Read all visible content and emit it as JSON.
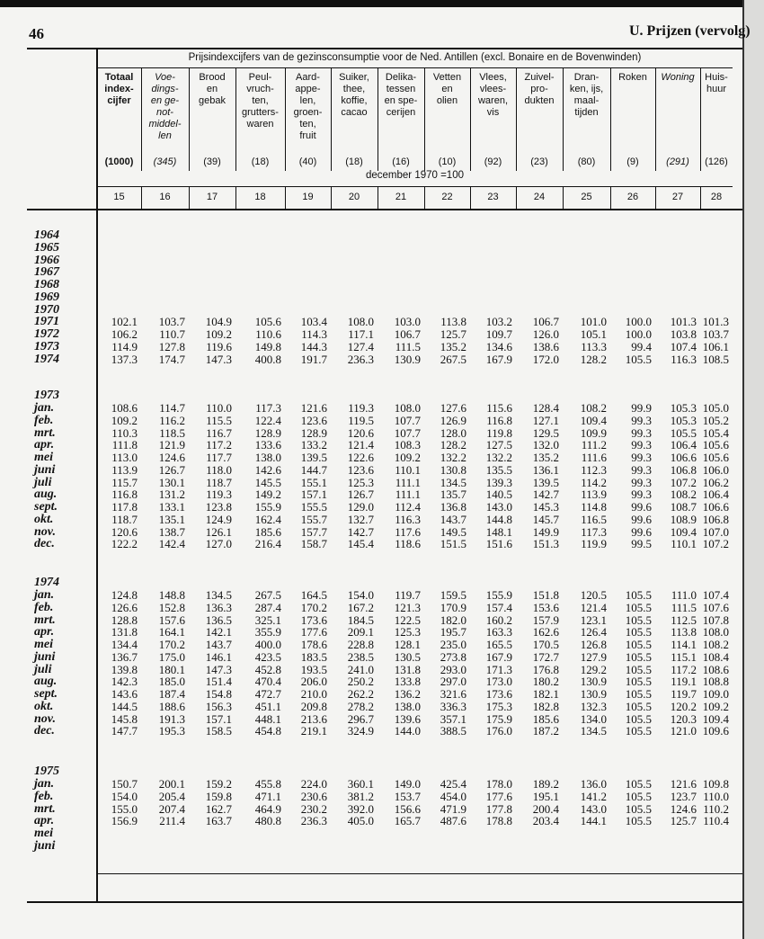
{
  "header": {
    "page_number": "46",
    "section_title": "U. Prijzen (vervolg)"
  },
  "table": {
    "title": "Prijsindexcijfers van de gezinsconsumptie voor de Ned. Antillen (excl. Bonaire en de Bovenwinden)",
    "base_note": "december 1970 =100",
    "columns": [
      {
        "label": "Totaal\nindex-\ncijfer",
        "weight": "(1000)",
        "number": 15
      },
      {
        "label": "Voe-\ndings-\nen ge-\nnot-\nmiddel-\nlen",
        "weight": "(345)",
        "number": 16
      },
      {
        "label": "Brood\nen\ngebak",
        "weight": "(39)",
        "number": 17
      },
      {
        "label": "Peul-\nvruch-\nten,\ngrutters-\nwaren",
        "weight": "(18)",
        "number": 18
      },
      {
        "label": "Aard-\nappe-\nlen,\ngroen-\nten,\nfruit",
        "weight": "(40)",
        "number": 19
      },
      {
        "label": "Suiker,\nthee,\nkoffie,\ncacao",
        "weight": "(18)",
        "number": 20
      },
      {
        "label": "Delika-\ntessen\nen spe-\ncerijen",
        "weight": "(16)",
        "number": 21
      },
      {
        "label": "Vetten\nen\nolien",
        "weight": "(10)",
        "number": 22
      },
      {
        "label": "Vlees,\nvlees-\nwaren,\nvis",
        "weight": "(92)",
        "number": 23
      },
      {
        "label": "Zuivel-\npro-\ndukten",
        "weight": "(23)",
        "number": 24
      },
      {
        "label": "Dran-\nken, ijs,\nmaal-\ntijden",
        "weight": "(80)",
        "number": 25
      },
      {
        "label": "Roken",
        "weight": "(9)",
        "number": 26
      },
      {
        "label": "Woning",
        "weight": "(291)",
        "number": 27
      },
      {
        "label": "Huis-\nhuur",
        "weight": "(126)",
        "number": 28
      }
    ],
    "sections": [
      {
        "rows": [
          {
            "label": "1964"
          },
          {
            "label": "1965"
          },
          {
            "label": "1966"
          },
          {
            "label": "1967"
          },
          {
            "label": "1968"
          },
          {
            "label": "1969"
          },
          {
            "label": "1970"
          },
          {
            "label": "1971",
            "values": [
              "102.1",
              "103.7",
              "104.9",
              "105.6",
              "103.4",
              "108.0",
              "103.0",
              "113.8",
              "103.2",
              "106.7",
              "101.0",
              "100.0",
              "101.3",
              "101.3"
            ]
          },
          {
            "label": "1972",
            "values": [
              "106.2",
              "110.7",
              "109.2",
              "110.6",
              "114.3",
              "117.1",
              "106.7",
              "125.7",
              "109.7",
              "126.0",
              "105.1",
              "100.0",
              "103.8",
              "103.7"
            ]
          },
          {
            "label": "1973",
            "values": [
              "114.9",
              "127.8",
              "119.6",
              "149.8",
              "144.3",
              "127.4",
              "111.5",
              "135.2",
              "134.6",
              "138.6",
              "113.3",
              "99.4",
              "107.4",
              "106.1"
            ]
          },
          {
            "label": "1974",
            "values": [
              "137.3",
              "174.7",
              "147.3",
              "400.8",
              "191.7",
              "236.3",
              "130.9",
              "267.5",
              "167.9",
              "172.0",
              "128.2",
              "105.5",
              "116.3",
              "108.5"
            ]
          }
        ]
      },
      {
        "label": "1973",
        "rows": [
          {
            "label": "jan.",
            "values": [
              "108.6",
              "114.7",
              "110.0",
              "117.3",
              "121.6",
              "119.3",
              "108.0",
              "127.6",
              "115.6",
              "128.4",
              "108.2",
              "99.9",
              "105.3",
              "105.0"
            ]
          },
          {
            "label": "feb.",
            "values": [
              "109.2",
              "116.2",
              "115.5",
              "122.4",
              "123.6",
              "119.5",
              "107.7",
              "126.9",
              "116.8",
              "127.1",
              "109.4",
              "99.3",
              "105.3",
              "105.2"
            ]
          },
          {
            "label": "mrt.",
            "values": [
              "110.3",
              "118.5",
              "116.7",
              "128.9",
              "128.9",
              "120.6",
              "107.7",
              "128.0",
              "119.8",
              "129.5",
              "109.9",
              "99.3",
              "105.5",
              "105.4"
            ]
          },
          {
            "label": "apr.",
            "values": [
              "111.8",
              "121.9",
              "117.2",
              "133.6",
              "133.2",
              "121.4",
              "108.3",
              "128.2",
              "127.5",
              "132.0",
              "111.2",
              "99.3",
              "106.4",
              "105.6"
            ]
          },
          {
            "label": "mei",
            "values": [
              "113.0",
              "124.6",
              "117.7",
              "138.0",
              "139.5",
              "122.6",
              "109.2",
              "132.2",
              "132.2",
              "135.2",
              "111.6",
              "99.3",
              "106.6",
              "105.6"
            ]
          },
          {
            "label": "juni",
            "values": [
              "113.9",
              "126.7",
              "118.0",
              "142.6",
              "144.7",
              "123.6",
              "110.1",
              "130.8",
              "135.5",
              "136.1",
              "112.3",
              "99.3",
              "106.8",
              "106.0"
            ]
          },
          {
            "label": "juli",
            "values": [
              "115.7",
              "130.1",
              "118.7",
              "145.5",
              "155.1",
              "125.3",
              "111.1",
              "134.5",
              "139.3",
              "139.5",
              "114.2",
              "99.3",
              "107.2",
              "106.2"
            ]
          },
          {
            "label": "aug.",
            "values": [
              "116.8",
              "131.2",
              "119.3",
              "149.2",
              "157.1",
              "126.7",
              "111.1",
              "135.7",
              "140.5",
              "142.7",
              "113.9",
              "99.3",
              "108.2",
              "106.4"
            ]
          },
          {
            "label": "sept.",
            "values": [
              "117.8",
              "133.1",
              "123.8",
              "155.9",
              "155.5",
              "129.0",
              "112.4",
              "136.8",
              "143.0",
              "145.3",
              "114.8",
              "99.6",
              "108.7",
              "106.6"
            ]
          },
          {
            "label": "okt.",
            "values": [
              "118.7",
              "135.1",
              "124.9",
              "162.4",
              "155.7",
              "132.7",
              "116.3",
              "143.7",
              "144.8",
              "145.7",
              "116.5",
              "99.6",
              "108.9",
              "106.8"
            ]
          },
          {
            "label": "nov.",
            "values": [
              "120.6",
              "138.7",
              "126.1",
              "185.6",
              "157.7",
              "142.7",
              "117.6",
              "149.5",
              "148.1",
              "149.9",
              "117.3",
              "99.6",
              "109.4",
              "107.0"
            ]
          },
          {
            "label": "dec.",
            "values": [
              "122.2",
              "142.4",
              "127.0",
              "216.4",
              "158.7",
              "145.4",
              "118.6",
              "151.5",
              "151.6",
              "151.3",
              "119.9",
              "99.5",
              "110.1",
              "107.2"
            ]
          }
        ]
      },
      {
        "label": "1974",
        "rows": [
          {
            "label": "jan.",
            "values": [
              "124.8",
              "148.8",
              "134.5",
              "267.5",
              "164.5",
              "154.0",
              "119.7",
              "159.5",
              "155.9",
              "151.8",
              "120.5",
              "105.5",
              "111.0",
              "107.4"
            ]
          },
          {
            "label": "feb.",
            "values": [
              "126.6",
              "152.8",
              "136.3",
              "287.4",
              "170.2",
              "167.2",
              "121.3",
              "170.9",
              "157.4",
              "153.6",
              "121.4",
              "105.5",
              "111.5",
              "107.6"
            ]
          },
          {
            "label": "mrt.",
            "values": [
              "128.8",
              "157.6",
              "136.5",
              "325.1",
              "173.6",
              "184.5",
              "122.5",
              "182.0",
              "160.2",
              "157.9",
              "123.1",
              "105.5",
              "112.5",
              "107.8"
            ]
          },
          {
            "label": "apr.",
            "values": [
              "131.8",
              "164.1",
              "142.1",
              "355.9",
              "177.6",
              "209.1",
              "125.3",
              "195.7",
              "163.3",
              "162.6",
              "126.4",
              "105.5",
              "113.8",
              "108.0"
            ]
          },
          {
            "label": "mei",
            "values": [
              "134.4",
              "170.2",
              "143.7",
              "400.0",
              "178.6",
              "228.8",
              "128.1",
              "235.0",
              "165.5",
              "170.5",
              "126.8",
              "105.5",
              "114.1",
              "108.2"
            ]
          },
          {
            "label": "juni",
            "values": [
              "136.7",
              "175.0",
              "146.1",
              "423.5",
              "183.5",
              "238.5",
              "130.5",
              "273.8",
              "167.9",
              "172.7",
              "127.9",
              "105.5",
              "115.1",
              "108.4"
            ]
          },
          {
            "label": "juli",
            "values": [
              "139.8",
              "180.1",
              "147.3",
              "452.8",
              "193.5",
              "241.0",
              "131.8",
              "293.0",
              "171.3",
              "176.8",
              "129.2",
              "105.5",
              "117.2",
              "108.6"
            ]
          },
          {
            "label": "aug.",
            "values": [
              "142.3",
              "185.0",
              "151.4",
              "470.4",
              "206.0",
              "250.2",
              "133.8",
              "297.0",
              "173.0",
              "180.2",
              "130.9",
              "105.5",
              "119.1",
              "108.8"
            ]
          },
          {
            "label": "sept.",
            "values": [
              "143.6",
              "187.4",
              "154.8",
              "472.7",
              "210.0",
              "262.2",
              "136.2",
              "321.6",
              "173.6",
              "182.1",
              "130.9",
              "105.5",
              "119.7",
              "109.0"
            ]
          },
          {
            "label": "okt.",
            "values": [
              "144.5",
              "188.6",
              "156.3",
              "451.1",
              "209.8",
              "278.2",
              "138.0",
              "336.3",
              "175.3",
              "182.8",
              "132.3",
              "105.5",
              "120.2",
              "109.2"
            ]
          },
          {
            "label": "nov.",
            "values": [
              "145.8",
              "191.3",
              "157.1",
              "448.1",
              "213.6",
              "296.7",
              "139.6",
              "357.1",
              "175.9",
              "185.6",
              "134.0",
              "105.5",
              "120.3",
              "109.4"
            ]
          },
          {
            "label": "dec.",
            "values": [
              "147.7",
              "195.3",
              "158.5",
              "454.8",
              "219.1",
              "324.9",
              "144.0",
              "388.5",
              "176.0",
              "187.2",
              "134.5",
              "105.5",
              "121.0",
              "109.6"
            ]
          }
        ]
      },
      {
        "label": "1975",
        "rows": [
          {
            "label": "jan.",
            "values": [
              "150.7",
              "200.1",
              "159.2",
              "455.8",
              "224.0",
              "360.1",
              "149.0",
              "425.4",
              "178.0",
              "189.2",
              "136.0",
              "105.5",
              "121.6",
              "109.8"
            ]
          },
          {
            "label": "feb.",
            "values": [
              "154.0",
              "205.4",
              "159.8",
              "471.1",
              "230.6",
              "381.2",
              "153.7",
              "454.0",
              "177.6",
              "195.1",
              "141.2",
              "105.5",
              "123.7",
              "110.0"
            ]
          },
          {
            "label": "mrt.",
            "values": [
              "155.0",
              "207.4",
              "162.7",
              "464.9",
              "230.2",
              "392.0",
              "156.6",
              "471.9",
              "177.8",
              "200.4",
              "143.0",
              "105.5",
              "124.6",
              "110.2"
            ]
          },
          {
            "label": "apr.",
            "values": [
              "156.9",
              "211.4",
              "163.7",
              "480.8",
              "236.3",
              "405.0",
              "165.7",
              "487.6",
              "178.8",
              "203.4",
              "144.1",
              "105.5",
              "125.7",
              "110.4"
            ]
          },
          {
            "label": "mei"
          },
          {
            "label": "juni"
          }
        ]
      }
    ]
  }
}
